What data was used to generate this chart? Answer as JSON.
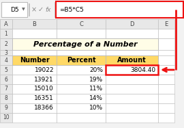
{
  "title": "Percentage of a Number",
  "formula_bar_cell": "D5",
  "formula_bar_formula": "=B5*C5",
  "col_letters": [
    "A",
    "B",
    "C",
    "D",
    "E"
  ],
  "rows": [
    [
      "19022",
      "20%",
      "3804.40"
    ],
    [
      "13921",
      "19%",
      ""
    ],
    [
      "15010",
      "11%",
      ""
    ],
    [
      "16351",
      "14%",
      ""
    ],
    [
      "18366",
      "10%",
      ""
    ]
  ],
  "title_bg": "#FFFDE7",
  "header_bg": "#FFD966",
  "cell_bg": "#FFFFFF",
  "header_row_bg": "#E8E8E8",
  "grid_color": "#BBBBBB",
  "red_color": "#EE1111",
  "text_color": "#000000",
  "gray_text": "#444444",
  "formula_bar_bg": "#FFFFFF",
  "sheet_bg": "#FFFFFF",
  "outer_bg": "#F2F2F2",
  "font_size": 6.5,
  "title_font_size": 8.0,
  "header_font_size": 7.0
}
